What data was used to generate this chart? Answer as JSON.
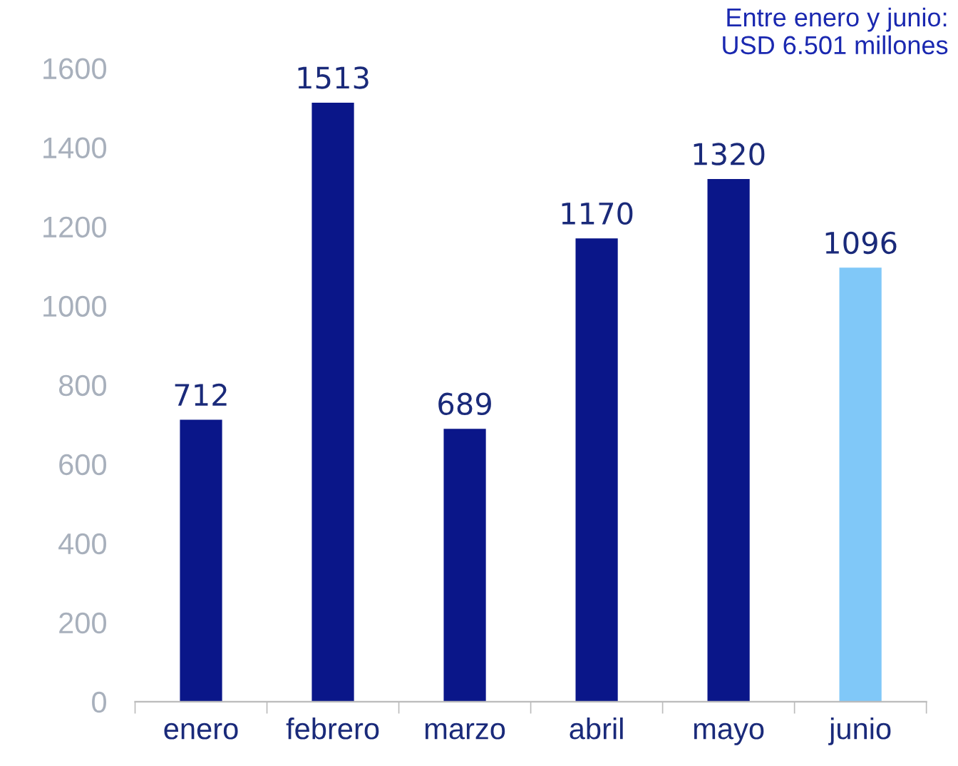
{
  "chart_data": {
    "type": "bar",
    "categories": [
      "enero",
      "febrero",
      "marzo",
      "abril",
      "mayo",
      "junio"
    ],
    "values": [
      712,
      1513,
      689,
      1170,
      1320,
      1096
    ],
    "colors": [
      "#0a1689",
      "#0a1689",
      "#0a1689",
      "#0a1689",
      "#0a1689",
      "#80c8f8"
    ],
    "ylim": [
      0,
      1600
    ],
    "yticks": [
      0,
      200,
      400,
      600,
      800,
      1000,
      1200,
      1400,
      1600
    ],
    "data_labels": true,
    "grid": false,
    "legend": false,
    "annotations": [
      "Entre enero y junio:\nUSD 6.501 millones"
    ]
  }
}
